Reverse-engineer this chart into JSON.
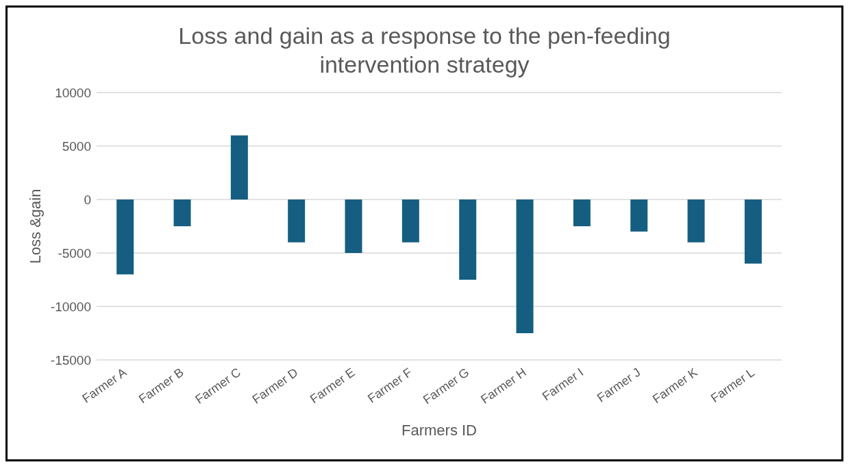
{
  "chart_data": {
    "type": "bar",
    "title": "Loss and gain as a response to the pen-feeding intervention strategy",
    "xlabel": "Farmers ID",
    "ylabel": "Loss &gain",
    "categories": [
      "Farmer A",
      "Farmer B",
      "Farmer C",
      "Farmer D",
      "Farmer E",
      "Farmer F",
      "Farmer G",
      "Farmer H",
      "Farmer I",
      "Farmer J",
      "Farmer K",
      "Farmer L"
    ],
    "values": [
      -7000,
      -2500,
      6000,
      -4000,
      -5000,
      -4000,
      -7500,
      -12500,
      -2500,
      -3000,
      -4000,
      -6000
    ],
    "color": "#155e82",
    "ylim": [
      -15000,
      10000
    ],
    "yticks": [
      -15000,
      -10000,
      -5000,
      0,
      5000,
      10000
    ],
    "grid": "y"
  }
}
